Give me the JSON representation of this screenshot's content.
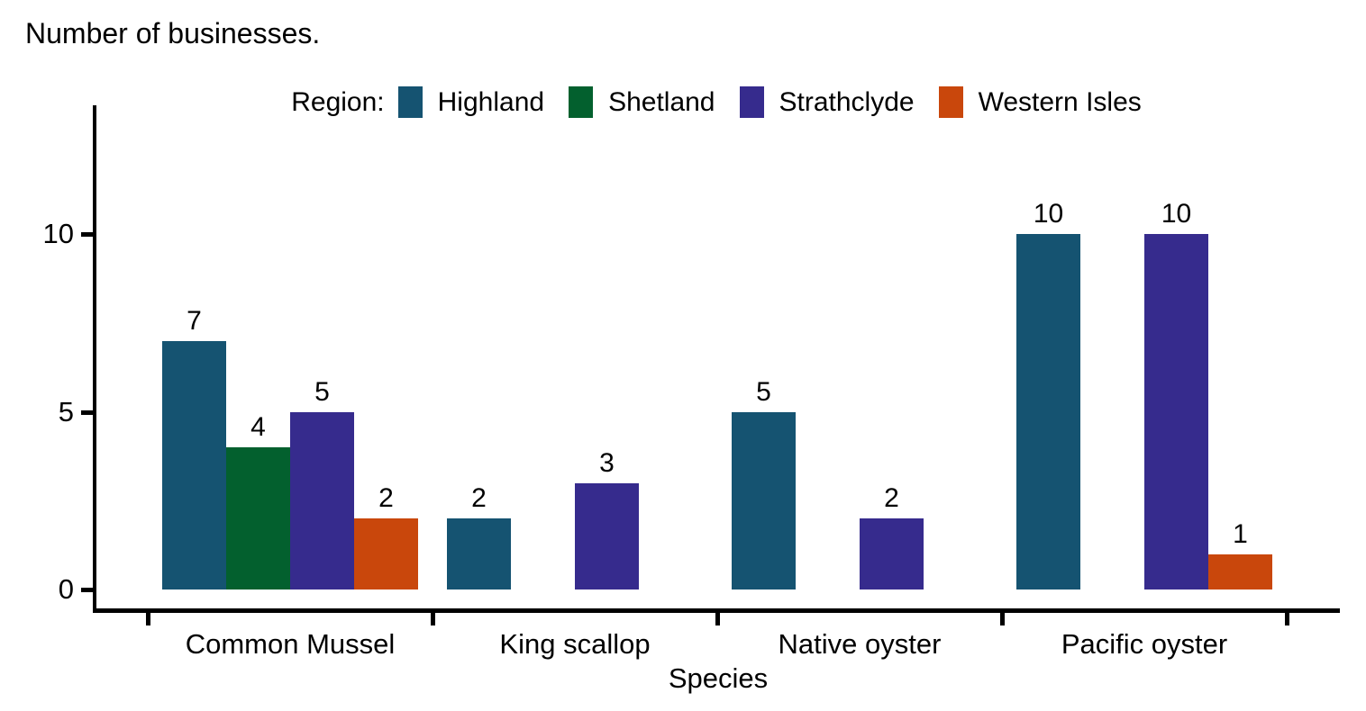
{
  "chart_data": {
    "type": "bar",
    "title": "Number of businesses.",
    "xlabel": "Species",
    "ylabel": "",
    "legend_title": "Region:",
    "legend_position": "top",
    "grid": false,
    "bar_labels": true,
    "categories": [
      "Common Mussel",
      "King scallop",
      "Native oyster",
      "Pacific oyster"
    ],
    "series": [
      {
        "name": "Highland",
        "color": "#155371",
        "values": [
          7,
          2,
          5,
          10
        ]
      },
      {
        "name": "Shetland",
        "color": "#03602e",
        "values": [
          4,
          null,
          null,
          null
        ]
      },
      {
        "name": "Strathclyde",
        "color": "#362b8d",
        "values": [
          5,
          3,
          2,
          10
        ]
      },
      {
        "name": "Western Isles",
        "color": "#c9470c",
        "values": [
          2,
          null,
          null,
          1
        ]
      }
    ],
    "yticks": [
      0,
      5,
      10
    ],
    "ylim": [
      0,
      14
    ],
    "axis_color": "#000000",
    "text_color": "#000000"
  }
}
